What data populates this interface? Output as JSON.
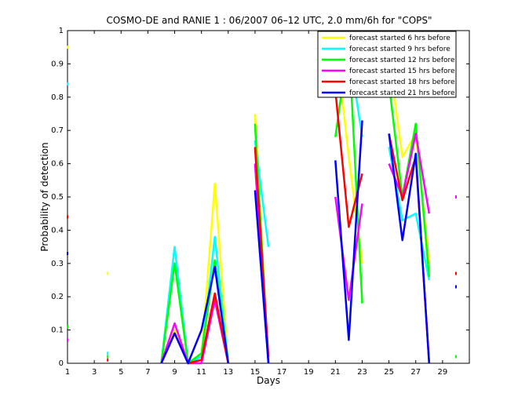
{
  "chart_data": {
    "type": "line",
    "title": "COSMO-DE and RANIE 1 : 06/2007 06–12 UTC, 2.0 mm/6h for \"COPS\"",
    "xlabel": "Days",
    "ylabel": "Probability of detection",
    "xlim": [
      1,
      31
    ],
    "ylim": [
      0,
      1
    ],
    "xticks": [
      1,
      3,
      5,
      7,
      9,
      11,
      13,
      15,
      17,
      19,
      21,
      23,
      25,
      27,
      29
    ],
    "yticks": [
      0,
      0.1,
      0.2,
      0.3,
      0.4,
      0.5,
      0.6,
      0.7,
      0.8,
      0.9,
      1
    ],
    "ytick_labels": [
      "0",
      "0.1",
      "0.2",
      "0.3",
      "0.4",
      "0.5",
      "0.6",
      "0.7",
      "0.8",
      "0.9",
      "1"
    ],
    "grid": false,
    "legend_position": "top-right",
    "x": [
      1,
      2,
      3,
      4,
      5,
      6,
      7,
      8,
      9,
      10,
      11,
      12,
      13,
      14,
      15,
      16,
      17,
      18,
      19,
      20,
      21,
      22,
      23,
      24,
      25,
      26,
      27,
      28,
      29,
      30
    ],
    "series": [
      {
        "name": "forecast started 6 hrs before",
        "color": "#ffff00",
        "values": [
          0.95,
          null,
          null,
          0.27,
          null,
          null,
          null,
          0.0,
          0.1,
          0.0,
          0.02,
          0.54,
          0.0,
          null,
          0.75,
          0.0,
          null,
          null,
          null,
          null,
          0.98,
          0.62,
          0.3,
          null,
          0.92,
          0.62,
          0.69,
          0.3,
          null,
          null
        ]
      },
      {
        "name": "forecast started 9 hrs before",
        "color": "#00ffff",
        "values": [
          0.84,
          null,
          null,
          0.03,
          null,
          null,
          null,
          0.0,
          0.35,
          0.0,
          0.02,
          0.38,
          0.0,
          null,
          0.67,
          0.35,
          null,
          null,
          null,
          null,
          0.93,
          0.95,
          0.68,
          null,
          0.65,
          0.43,
          0.45,
          0.25,
          null,
          null
        ]
      },
      {
        "name": "forecast started 12 hrs before",
        "color": "#00ff00",
        "values": [
          0.11,
          null,
          null,
          0.02,
          null,
          null,
          null,
          0.0,
          0.3,
          0.0,
          0.03,
          0.31,
          0.0,
          null,
          0.72,
          0.0,
          null,
          null,
          null,
          null,
          0.68,
          0.97,
          0.18,
          null,
          0.84,
          0.5,
          0.72,
          0.26,
          null,
          0.02
        ]
      },
      {
        "name": "forecast started 15 hrs before",
        "color": "#ff00ff",
        "values": [
          0.07,
          null,
          null,
          null,
          null,
          null,
          null,
          0.0,
          0.12,
          0.0,
          0.0,
          0.19,
          0.0,
          null,
          0.6,
          0.0,
          null,
          null,
          null,
          null,
          0.5,
          0.19,
          0.48,
          null,
          0.6,
          0.5,
          0.69,
          0.45,
          null,
          0.5
        ]
      },
      {
        "name": "forecast started 18 hrs before",
        "color": "#ff0000",
        "values": [
          0.44,
          null,
          null,
          0.01,
          null,
          null,
          null,
          0.0,
          0.09,
          0.0,
          0.01,
          0.21,
          0.0,
          null,
          0.65,
          0.02,
          null,
          null,
          null,
          null,
          0.82,
          0.41,
          0.57,
          null,
          0.69,
          0.49,
          0.62,
          0.0,
          null,
          0.27
        ]
      },
      {
        "name": "forecast started 21 hrs before",
        "color": "#0000ff",
        "values": [
          0.33,
          null,
          null,
          null,
          null,
          null,
          null,
          0.0,
          0.09,
          0.0,
          0.1,
          0.29,
          0.0,
          null,
          0.52,
          0.0,
          null,
          null,
          null,
          null,
          0.61,
          0.07,
          0.73,
          null,
          0.69,
          0.37,
          0.63,
          0.0,
          null,
          0.23
        ]
      }
    ]
  }
}
